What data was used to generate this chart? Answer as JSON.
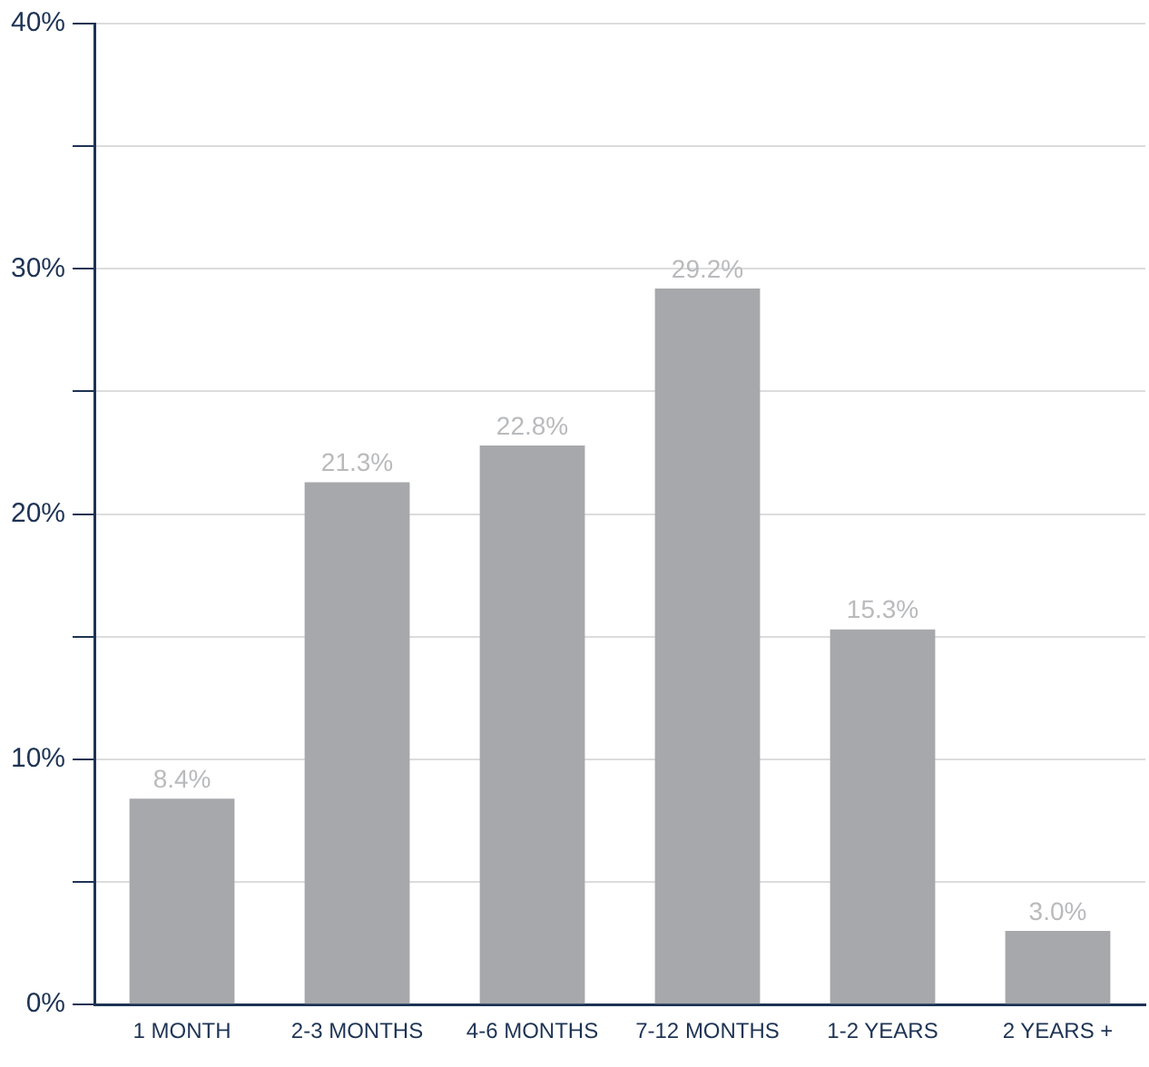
{
  "chart_data": {
    "type": "bar",
    "categories": [
      "1 MONTH",
      "2-3 MONTHS",
      "4-6 MONTHS",
      "7-12 MONTHS",
      "1-2 YEARS",
      "2 YEARS +"
    ],
    "values": [
      8.4,
      21.3,
      22.8,
      29.2,
      15.3,
      3.0
    ],
    "value_labels": [
      "8.4%",
      "21.3%",
      "22.8%",
      "29.2%",
      "15.3%",
      "3.0%"
    ],
    "color": "#a7a8ab",
    "ylim": [
      0,
      40
    ],
    "yticks": [
      {
        "value": 0,
        "label": "0%"
      },
      {
        "value": 5,
        "label": null
      },
      {
        "value": 10,
        "label": "10%"
      },
      {
        "value": 15,
        "label": null
      },
      {
        "value": 20,
        "label": "20%"
      },
      {
        "value": 25,
        "label": null
      },
      {
        "value": 30,
        "label": "30%"
      },
      {
        "value": 35,
        "label": null
      },
      {
        "value": 40,
        "label": "40%"
      }
    ],
    "grid": "y",
    "legend": false
  }
}
